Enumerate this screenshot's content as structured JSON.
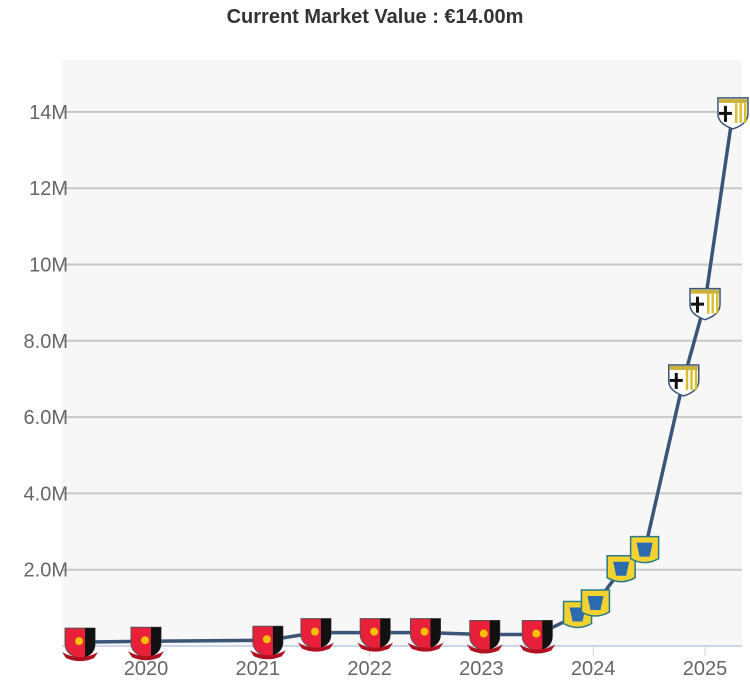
{
  "title": "Current Market Value : €14.00m",
  "chart_data": {
    "type": "line",
    "title": "Current Market Value : €14.00m",
    "xlabel": "",
    "ylabel": "",
    "x_ticks": [
      "2020",
      "2021",
      "2022",
      "2023",
      "2024",
      "2025"
    ],
    "y_ticks": [
      "2.0M",
      "4.0M",
      "6.0M",
      "8.0M",
      "10M",
      "12M",
      "14M"
    ],
    "y_tick_values": [
      2,
      4,
      6,
      8,
      10,
      12,
      14
    ],
    "ylim": [
      0,
      15
    ],
    "xlim": [
      2019.3,
      2025.28
    ],
    "grid": true,
    "line_color": "#3b5579",
    "background": "#f7f7f7",
    "series": [
      {
        "values_unit": "EUR millions",
        "points": [
          {
            "x": 2019.41,
            "y": 0.1,
            "crest": "red-black-crest"
          },
          {
            "x": 2020.0,
            "y": 0.125,
            "crest": "red-black-crest"
          },
          {
            "x": 2021.09,
            "y": 0.15,
            "crest": "red-black-crest"
          },
          {
            "x": 2021.52,
            "y": 0.35,
            "crest": "red-black-crest"
          },
          {
            "x": 2022.05,
            "y": 0.35,
            "crest": "red-black-crest"
          },
          {
            "x": 2022.5,
            "y": 0.35,
            "crest": "red-black-crest"
          },
          {
            "x": 2023.03,
            "y": 0.3,
            "crest": "red-black-crest"
          },
          {
            "x": 2023.5,
            "y": 0.3,
            "crest": "red-black-crest"
          },
          {
            "x": 2023.86,
            "y": 0.8,
            "crest": "yellow-blue-crest"
          },
          {
            "x": 2024.02,
            "y": 1.1,
            "crest": "yellow-blue-crest"
          },
          {
            "x": 2024.25,
            "y": 2.0,
            "crest": "yellow-blue-crest"
          },
          {
            "x": 2024.46,
            "y": 2.5,
            "crest": "yellow-blue-crest"
          },
          {
            "x": 2024.81,
            "y": 7.0,
            "crest": "white-black-yellow-crest"
          },
          {
            "x": 2025.0,
            "y": 9.0,
            "crest": "white-black-yellow-crest"
          },
          {
            "x": 2025.25,
            "y": 14.0,
            "crest": "white-black-yellow-crest"
          }
        ]
      }
    ]
  }
}
